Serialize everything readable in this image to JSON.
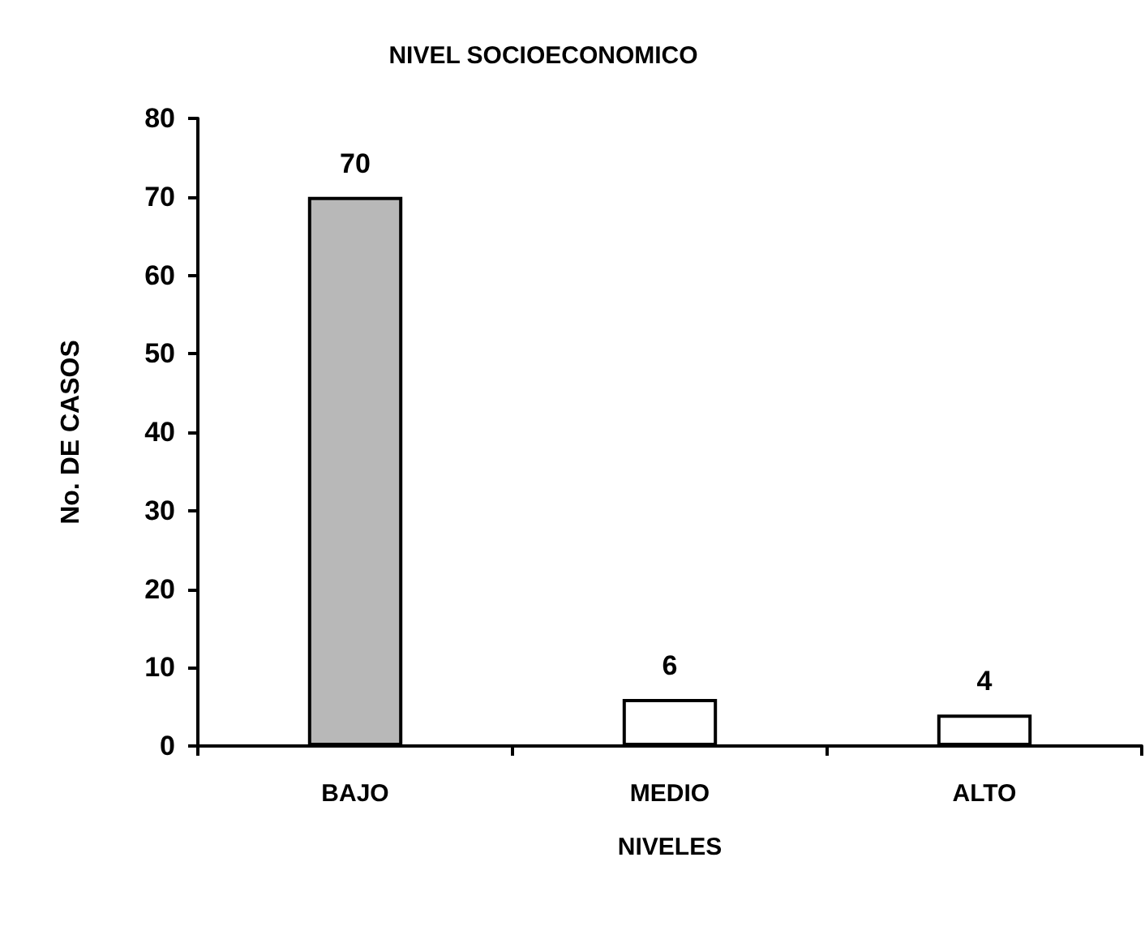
{
  "chart_data": {
    "type": "bar",
    "title": "NIVEL SOCIOECONOMICO",
    "xlabel": "NIVELES",
    "ylabel": "No. DE CASOS",
    "categories": [
      "BAJO",
      "MEDIO",
      "ALTO"
    ],
    "values": [
      70,
      6,
      4
    ],
    "colors": [
      "#b8b8b8",
      "#ffffff",
      "#ffffff"
    ],
    "ylim": [
      0,
      80
    ],
    "yticks": [
      0,
      10,
      20,
      30,
      40,
      50,
      60,
      70,
      80
    ],
    "grid": false,
    "data_labels": true
  }
}
